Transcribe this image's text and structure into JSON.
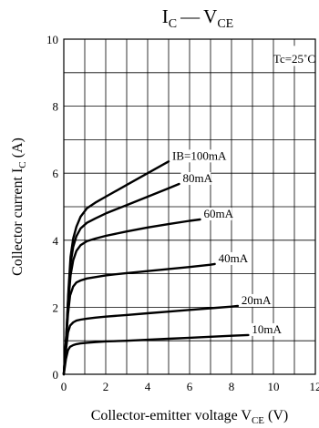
{
  "chart_data": {
    "type": "line",
    "title": {
      "main": "I",
      "main_sub": "C",
      "dash": "—",
      "second": "V",
      "second_sub": "CE"
    },
    "xlabel": {
      "text": "Collector-emitter voltage  V",
      "sub": "CE",
      "unit": " (V)"
    },
    "ylabel": {
      "text": "Collector current  I",
      "sub": "C",
      "unit": "  (A)"
    },
    "xlim": [
      0,
      12
    ],
    "ylim": [
      0,
      10
    ],
    "xticks": [
      0,
      2,
      4,
      6,
      8,
      10,
      12
    ],
    "yticks": [
      0,
      2,
      4,
      6,
      8,
      10
    ],
    "grid": true,
    "grid_x_step": 1,
    "grid_y_step": 1,
    "condition": "Tc=25˚C",
    "series": [
      {
        "name": "IB=100mA",
        "x": [
          0,
          0.12,
          0.22,
          0.32,
          0.45,
          0.6,
          0.8,
          1.1,
          1.5,
          2,
          3,
          4,
          5
        ],
        "y": [
          0,
          1.2,
          2.5,
          3.5,
          4.05,
          4.4,
          4.7,
          4.95,
          5.12,
          5.3,
          5.65,
          6.0,
          6.35
        ]
      },
      {
        "name": "80mA",
        "x": [
          0,
          0.12,
          0.22,
          0.32,
          0.45,
          0.6,
          0.8,
          1.1,
          1.5,
          2,
          3,
          4,
          5,
          5.5
        ],
        "y": [
          0,
          1.2,
          2.4,
          3.3,
          3.8,
          4.12,
          4.35,
          4.52,
          4.65,
          4.8,
          5.05,
          5.3,
          5.55,
          5.68
        ]
      },
      {
        "name": "60mA",
        "x": [
          0,
          0.12,
          0.22,
          0.32,
          0.45,
          0.6,
          0.8,
          1.1,
          1.5,
          2,
          3,
          4,
          5,
          6,
          6.5
        ],
        "y": [
          0,
          1.1,
          2.2,
          2.95,
          3.4,
          3.68,
          3.85,
          3.97,
          4.05,
          4.13,
          4.26,
          4.38,
          4.48,
          4.58,
          4.62
        ]
      },
      {
        "name": "40mA",
        "x": [
          0,
          0.1,
          0.2,
          0.3,
          0.45,
          0.6,
          0.8,
          1.1,
          1.5,
          2,
          3,
          4,
          5,
          6,
          7,
          7.2
        ],
        "y": [
          0,
          0.9,
          1.8,
          2.35,
          2.62,
          2.74,
          2.8,
          2.86,
          2.9,
          2.95,
          3.02,
          3.08,
          3.14,
          3.2,
          3.27,
          3.29
        ]
      },
      {
        "name": "20mA",
        "x": [
          0,
          0.1,
          0.2,
          0.3,
          0.45,
          0.6,
          0.8,
          1.1,
          1.5,
          2,
          3,
          4,
          5,
          6,
          7,
          8,
          8.3
        ],
        "y": [
          0,
          0.7,
          1.25,
          1.45,
          1.55,
          1.6,
          1.63,
          1.66,
          1.69,
          1.72,
          1.77,
          1.82,
          1.87,
          1.92,
          1.97,
          2.02,
          2.04
        ]
      },
      {
        "name": "10mA",
        "x": [
          0,
          0.1,
          0.2,
          0.3,
          0.45,
          0.6,
          0.8,
          1.1,
          1.5,
          2,
          3,
          4,
          5,
          6,
          7,
          8,
          8.8
        ],
        "y": [
          0,
          0.45,
          0.72,
          0.82,
          0.87,
          0.9,
          0.92,
          0.94,
          0.96,
          0.98,
          1.0,
          1.03,
          1.06,
          1.09,
          1.12,
          1.15,
          1.17
        ]
      }
    ]
  }
}
